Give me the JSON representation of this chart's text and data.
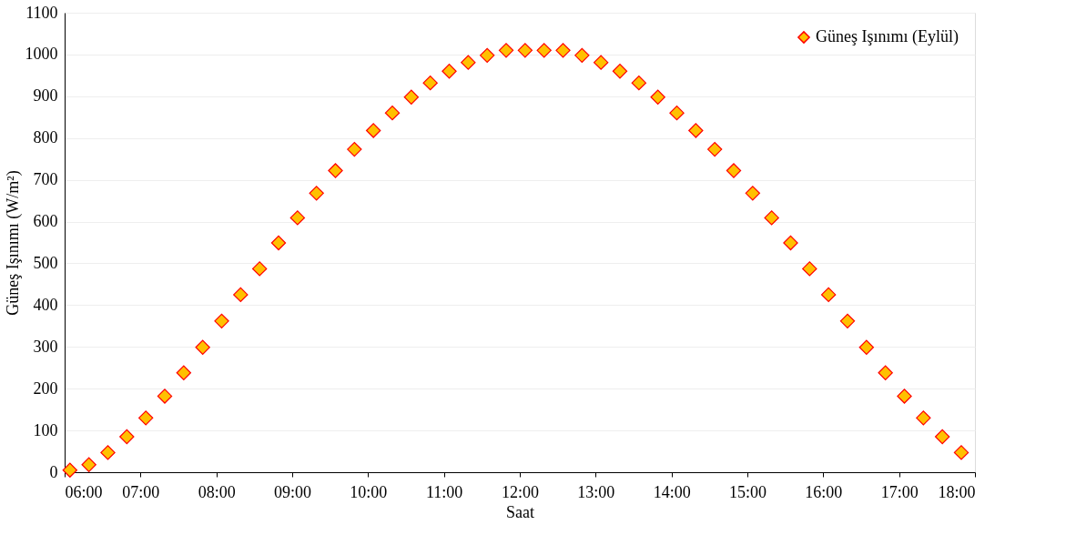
{
  "chart_data": {
    "type": "scatter",
    "xlabel": "Saat",
    "ylabel": "Güneş Işınımı (W/m²)",
    "x": [
      6.07,
      6.32,
      6.57,
      6.82,
      7.07,
      7.32,
      7.57,
      7.82,
      8.07,
      8.32,
      8.57,
      8.82,
      9.07,
      9.32,
      9.57,
      9.82,
      10.07,
      10.32,
      10.57,
      10.82,
      11.07,
      11.32,
      11.57,
      11.82,
      12.07,
      12.32,
      12.57,
      12.82,
      13.07,
      13.32,
      13.57,
      13.82,
      14.07,
      14.32,
      14.57,
      14.82,
      15.07,
      15.32,
      15.57,
      15.82,
      16.07,
      16.32,
      16.57,
      16.82,
      17.07,
      17.32,
      17.57,
      17.82
    ],
    "series": [
      {
        "name": "Güneş Işınımı (Eylül)",
        "color": "#ffc000",
        "values": [
          5,
          18,
          47,
          85,
          130,
          182,
          238,
          299,
          362,
          425,
          487,
          549,
          609,
          668,
          722,
          773,
          818,
          860,
          898,
          932,
          960,
          981,
          998,
          1010,
          1010,
          1010,
          1010,
          998,
          981,
          960,
          932,
          898,
          860,
          818,
          773,
          722,
          668,
          609,
          549,
          487,
          425,
          362,
          299,
          238,
          182,
          130,
          85,
          47
        ]
      }
    ],
    "xlim": [
      6,
      18
    ],
    "xticks": [
      {
        "value": 6,
        "label": "06:00"
      },
      {
        "value": 7,
        "label": "07:00"
      },
      {
        "value": 8,
        "label": "08:00"
      },
      {
        "value": 9,
        "label": "09:00"
      },
      {
        "value": 10,
        "label": "10:00"
      },
      {
        "value": 11,
        "label": "11:00"
      },
      {
        "value": 12,
        "label": "12:00"
      },
      {
        "value": 13,
        "label": "13:00"
      },
      {
        "value": 14,
        "label": "14:00"
      },
      {
        "value": 15,
        "label": "15:00"
      },
      {
        "value": 16,
        "label": "16:00"
      },
      {
        "value": 17,
        "label": "17:00"
      },
      {
        "value": 18,
        "label": "18:00"
      }
    ],
    "ylim": [
      0,
      1100
    ],
    "yticks": [
      0,
      100,
      200,
      300,
      400,
      500,
      600,
      700,
      800,
      900,
      1000,
      1100
    ],
    "grid": "y",
    "legend": "top right",
    "marker": "diamond"
  }
}
